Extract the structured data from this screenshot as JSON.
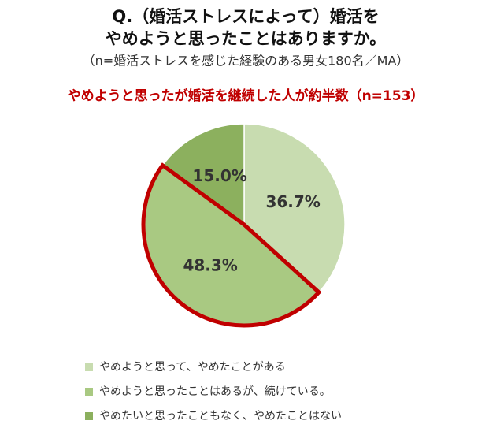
{
  "chart_data": {
    "type": "pie",
    "title": [
      "Q.（婚活ストレスによって）婚活を",
      "やめようと思ったことはありますか。"
    ],
    "subtitle": "（n=婚活ストレスを感じた経験のある男女180名／MA）",
    "annotation": "やめようと思ったが婚活を継続した人が約半数（n=153）",
    "categories": [
      "やめようと思って、やめたことがある",
      "やめようと思ったことはあるが、続けている。",
      "やめたいと思ったこともなく、やめたことはない"
    ],
    "values": [
      36.7,
      48.3,
      15.0
    ],
    "value_labels": [
      "36.7%",
      "48.3%",
      "15.0%"
    ],
    "colors": [
      "#c8dcb0",
      "#a9c982",
      "#8cb05e"
    ],
    "highlight": 1,
    "highlight_color": "#c00000"
  }
}
